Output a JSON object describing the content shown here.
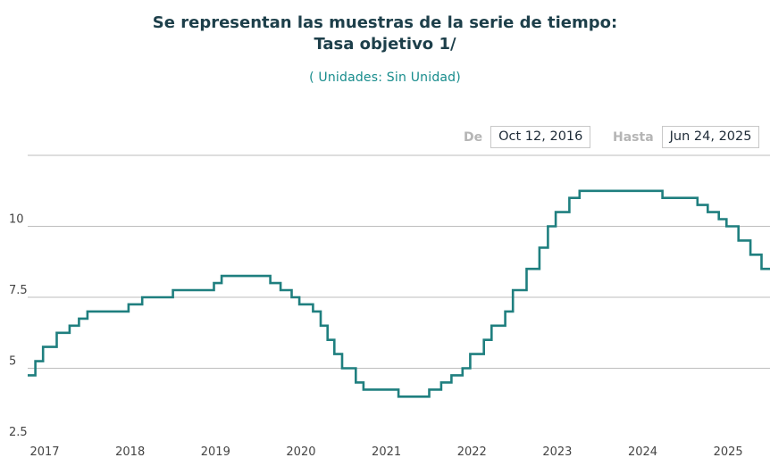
{
  "chart": {
    "title_line1": "Se representan las muestras de la serie de tiempo:",
    "title_line2": "Tasa objetivo 1/",
    "subtitle": "( Unidades:  Sin Unidad)"
  },
  "range": {
    "from_label": "De",
    "from_value": "Oct 12, 2016",
    "to_label": "Hasta",
    "to_value": "Jun 24, 2025"
  },
  "colors": {
    "line": "#1f7f7f",
    "grid": "#bdbdbd"
  },
  "chart_data": {
    "type": "line",
    "step": true,
    "ylim": [
      2.5,
      12.5
    ],
    "xlim": [
      2016.78,
      2025.48
    ],
    "yticks": [
      {
        "value": 2.5,
        "label": "2.5"
      },
      {
        "value": 5,
        "label": "5"
      },
      {
        "value": 7.5,
        "label": "7.5"
      },
      {
        "value": 10,
        "label": "10"
      }
    ],
    "xticks": [
      {
        "value": 2017,
        "label": "2017"
      },
      {
        "value": 2018,
        "label": "2018"
      },
      {
        "value": 2019,
        "label": "2019"
      },
      {
        "value": 2020,
        "label": "2020"
      },
      {
        "value": 2021,
        "label": "2021"
      },
      {
        "value": 2022,
        "label": "2022"
      },
      {
        "value": 2023,
        "label": "2023"
      },
      {
        "value": 2024,
        "label": "2024"
      },
      {
        "value": 2025,
        "label": "2025"
      }
    ],
    "series": [
      {
        "points": [
          [
            2016.78,
            4.75
          ],
          [
            2016.87,
            5.25
          ],
          [
            2016.96,
            5.75
          ],
          [
            2017.12,
            6.25
          ],
          [
            2017.27,
            6.5
          ],
          [
            2017.38,
            6.75
          ],
          [
            2017.48,
            7.0
          ],
          [
            2017.96,
            7.25
          ],
          [
            2018.12,
            7.5
          ],
          [
            2018.48,
            7.75
          ],
          [
            2018.96,
            8.0
          ],
          [
            2019.05,
            8.25
          ],
          [
            2019.62,
            8.0
          ],
          [
            2019.74,
            7.75
          ],
          [
            2019.87,
            7.5
          ],
          [
            2019.96,
            7.25
          ],
          [
            2020.12,
            7.0
          ],
          [
            2020.21,
            6.5
          ],
          [
            2020.29,
            6.0
          ],
          [
            2020.37,
            5.5
          ],
          [
            2020.46,
            5.0
          ],
          [
            2020.62,
            4.5
          ],
          [
            2020.71,
            4.25
          ],
          [
            2021.12,
            4.0
          ],
          [
            2021.48,
            4.25
          ],
          [
            2021.62,
            4.5
          ],
          [
            2021.74,
            4.75
          ],
          [
            2021.87,
            5.0
          ],
          [
            2021.96,
            5.5
          ],
          [
            2022.12,
            6.0
          ],
          [
            2022.21,
            6.5
          ],
          [
            2022.37,
            7.0
          ],
          [
            2022.46,
            7.75
          ],
          [
            2022.62,
            8.5
          ],
          [
            2022.77,
            9.25
          ],
          [
            2022.87,
            10.0
          ],
          [
            2022.96,
            10.5
          ],
          [
            2023.12,
            11.0
          ],
          [
            2023.24,
            11.25
          ],
          [
            2024.21,
            11.0
          ],
          [
            2024.62,
            10.75
          ],
          [
            2024.74,
            10.5
          ],
          [
            2024.87,
            10.25
          ],
          [
            2024.96,
            10.0
          ],
          [
            2025.1,
            9.5
          ],
          [
            2025.24,
            9.0
          ],
          [
            2025.37,
            8.5
          ],
          [
            2025.48,
            8.5
          ]
        ]
      }
    ]
  }
}
